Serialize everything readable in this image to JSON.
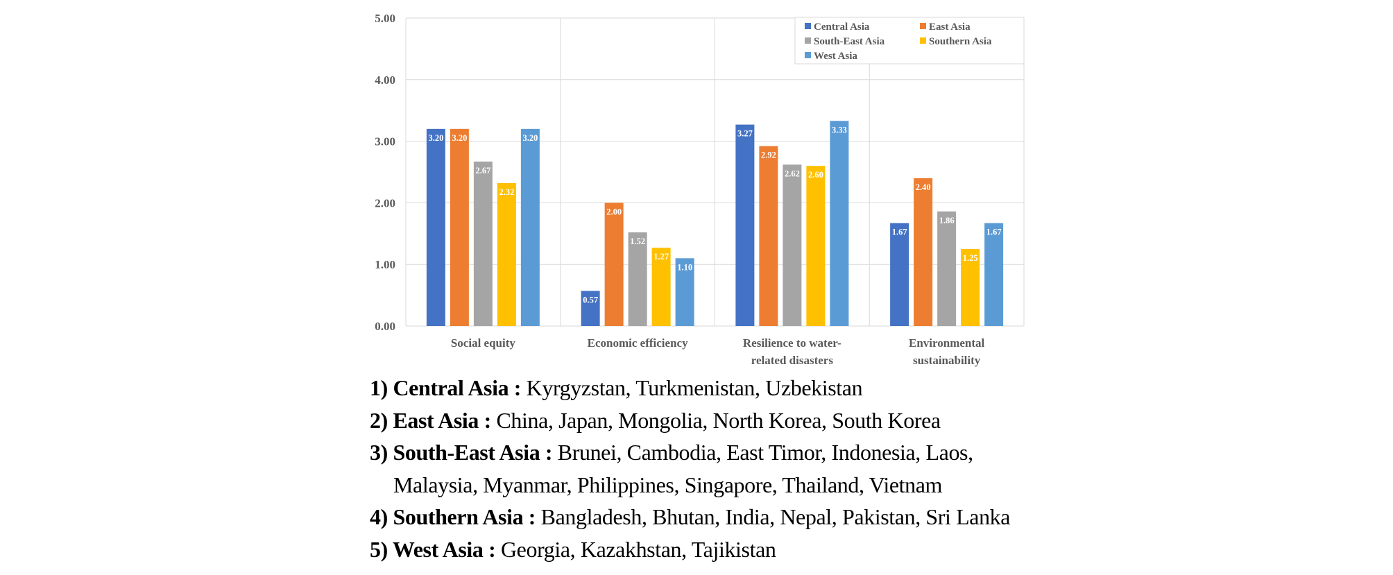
{
  "chart_data": {
    "type": "bar",
    "categories": [
      [
        "Social equity"
      ],
      [
        "Economic efficiency"
      ],
      [
        "Resilience to water-",
        "related disasters"
      ],
      [
        "Environmental",
        "sustainability"
      ]
    ],
    "series": [
      {
        "name": "Central Asia",
        "color": "#4472C4",
        "values": [
          3.2,
          0.57,
          3.27,
          1.67
        ],
        "labels": [
          "3.20",
          "0.57",
          "3.27",
          "1.67"
        ]
      },
      {
        "name": "East Asia",
        "color": "#ED7D31",
        "values": [
          3.2,
          2.0,
          2.92,
          2.4
        ],
        "labels": [
          "3.20",
          "2.00",
          "2.92",
          "2.40"
        ]
      },
      {
        "name": "South-East Asia",
        "color": "#A5A5A5",
        "values": [
          2.67,
          1.52,
          2.62,
          1.86
        ],
        "labels": [
          "2.67",
          "1.52",
          "2.62",
          "1.86"
        ]
      },
      {
        "name": "Southern Asia",
        "color": "#FFC000",
        "values": [
          2.32,
          1.27,
          2.6,
          1.25
        ],
        "labels": [
          "2.32",
          "1.27",
          "2.60",
          "1.25"
        ]
      },
      {
        "name": "West Asia",
        "color": "#5B9BD5",
        "values": [
          3.2,
          1.1,
          3.33,
          1.67
        ],
        "labels": [
          "3.20",
          "1.10",
          "3.33",
          "1.67"
        ]
      }
    ],
    "yticks": [
      "0.00",
      "1.00",
      "2.00",
      "3.00",
      "4.00",
      "5.00"
    ],
    "ylim": [
      0,
      5
    ],
    "legend_position": "top-right",
    "title": "",
    "xlabel": "",
    "ylabel": ""
  },
  "notes": [
    {
      "label": "1) Central Asia :",
      "text": " Kyrgyzstan, Turkmenistan, Uzbekistan"
    },
    {
      "label": "2) East Asia :",
      "text": " China, Japan, Mongolia, North Korea, South Korea"
    },
    {
      "label": "3) South-East Asia :",
      "text": " Brunei, Cambodia, East Timor, Indonesia, Laos,"
    },
    {
      "label": "",
      "text": "Malaysia, Myanmar, Philippines, Singapore, Thailand, Vietnam"
    },
    {
      "label": "4) Southern Asia :",
      "text": " Bangladesh, Bhutan, India, Nepal, Pakistan, Sri Lanka"
    },
    {
      "label": "5) West Asia :",
      "text": " Georgia, Kazakhstan, Tajikistan"
    }
  ]
}
